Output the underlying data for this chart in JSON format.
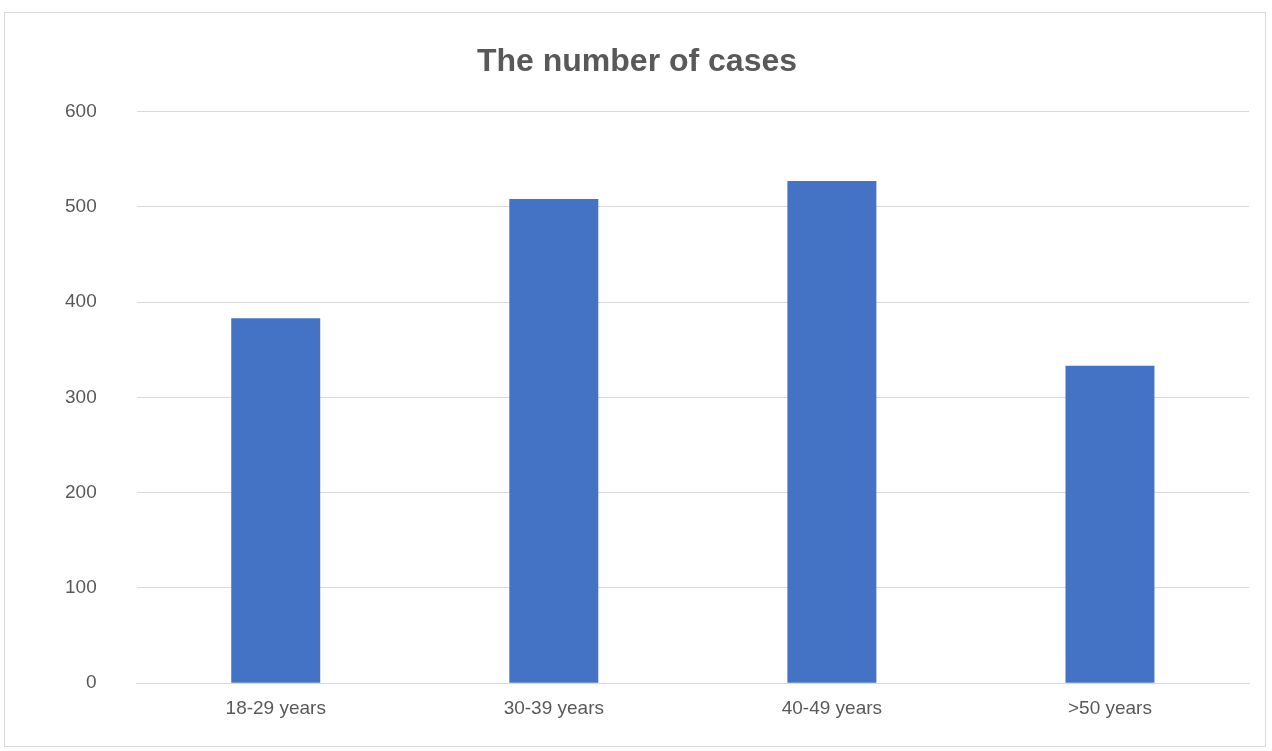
{
  "chart_data": {
    "type": "bar",
    "title": "The number of cases",
    "categories": [
      "18-29 years",
      "30-39 years",
      "40-49 years",
      ">50 years"
    ],
    "values": [
      383,
      508,
      527,
      333
    ],
    "color": "#4472c4",
    "ylim": [
      0,
      600
    ],
    "yticks": [
      0,
      100,
      200,
      300,
      400,
      500,
      600
    ],
    "grid": "y",
    "legend": false
  }
}
